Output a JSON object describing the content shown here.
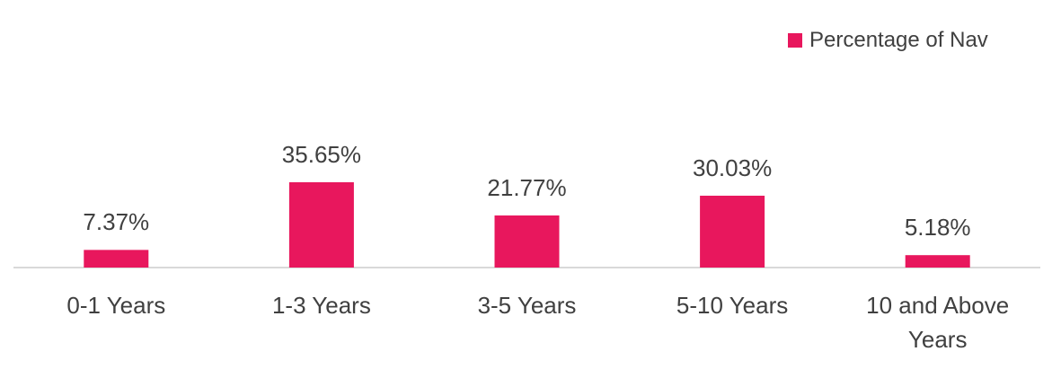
{
  "chart_data": {
    "type": "bar",
    "categories": [
      "0-1 Years",
      "1-3 Years",
      "3-5 Years",
      "5-10 Years",
      "10 and Above Years"
    ],
    "series": [
      {
        "name": "Percentage of Nav",
        "color": "#e8175d",
        "values": [
          7.37,
          35.65,
          21.77,
          30.03,
          5.18
        ],
        "value_labels": [
          "7.37%",
          "35.65%",
          "21.77%",
          "30.03%",
          "5.18%"
        ]
      }
    ],
    "legend": "top-right"
  }
}
